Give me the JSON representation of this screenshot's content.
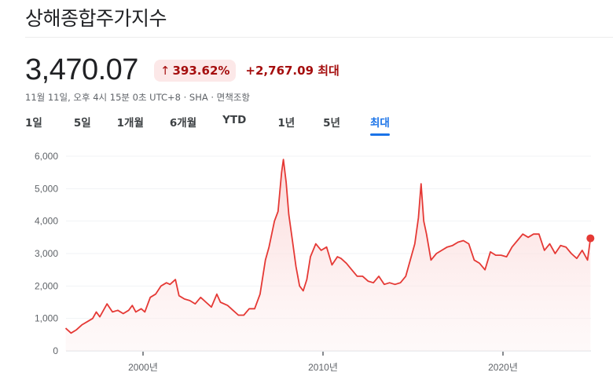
{
  "header": {
    "title": "상해종합주가지수"
  },
  "quote": {
    "price": "3,470.07",
    "change_percent": "393.62%",
    "change_arrow": "↑",
    "change_absolute": "+2,767.09 최대",
    "meta": "11월 11일, 오후 4시 15분 0초 UTC+8 · SHA · 면책조항"
  },
  "range_tabs": [
    {
      "label": "1일",
      "active": false
    },
    {
      "label": "5일",
      "active": false
    },
    {
      "label": "1개월",
      "active": false
    },
    {
      "label": "6개월",
      "active": false
    },
    {
      "label": "YTD",
      "active": false
    },
    {
      "label": "1년",
      "active": false
    },
    {
      "label": "5년",
      "active": false
    },
    {
      "label": "최대",
      "active": true
    }
  ],
  "colors": {
    "line": "#e53935",
    "fill_top": "#fbd3d3",
    "active_tab": "#1a73e8",
    "negative_badge_bg": "#fce8e8",
    "negative_text": "#a50e0e"
  },
  "chart_data": {
    "type": "area",
    "title": "상해종합주가지수",
    "xlabel": "",
    "ylabel": "",
    "ylim": [
      0,
      6000
    ],
    "xlim": [
      1995.7,
      2024.9
    ],
    "yticks": [
      "0",
      "1,000",
      "2,000",
      "3,000",
      "4,000",
      "5,000",
      "6,000"
    ],
    "ytick_values": [
      0,
      1000,
      2000,
      3000,
      4000,
      5000,
      6000
    ],
    "xticks": [
      "2000년",
      "2010년",
      "2020년"
    ],
    "xtick_values": [
      2000,
      2010,
      2020
    ],
    "grid": true,
    "legend": "none",
    "series": [
      {
        "name": "상해종합주가지수",
        "x": [
          1995.7,
          1996.0,
          1996.3,
          1996.6,
          1996.9,
          1997.2,
          1997.4,
          1997.6,
          1997.8,
          1998.0,
          1998.3,
          1998.6,
          1998.9,
          1999.2,
          1999.4,
          1999.6,
          1999.9,
          2000.1,
          2000.4,
          2000.7,
          2001.0,
          2001.3,
          2001.5,
          2001.8,
          2002.0,
          2002.3,
          2002.6,
          2002.9,
          2003.2,
          2003.5,
          2003.8,
          2004.1,
          2004.3,
          2004.7,
          2005.0,
          2005.3,
          2005.6,
          2005.9,
          2006.2,
          2006.5,
          2006.8,
          2007.0,
          2007.3,
          2007.5,
          2007.7,
          2007.8,
          2007.95,
          2008.1,
          2008.3,
          2008.5,
          2008.7,
          2008.9,
          2009.1,
          2009.3,
          2009.6,
          2009.9,
          2010.2,
          2010.5,
          2010.8,
          2011.0,
          2011.3,
          2011.6,
          2011.9,
          2012.2,
          2012.5,
          2012.8,
          2013.1,
          2013.4,
          2013.7,
          2014.0,
          2014.3,
          2014.6,
          2014.9,
          2015.1,
          2015.3,
          2015.45,
          2015.6,
          2015.75,
          2016.0,
          2016.3,
          2016.6,
          2016.9,
          2017.2,
          2017.5,
          2017.8,
          2018.1,
          2018.4,
          2018.7,
          2019.0,
          2019.3,
          2019.6,
          2019.9,
          2020.2,
          2020.5,
          2020.8,
          2021.1,
          2021.4,
          2021.7,
          2022.0,
          2022.3,
          2022.6,
          2022.9,
          2023.2,
          2023.5,
          2023.8,
          2024.1,
          2024.4,
          2024.7,
          2024.86
        ],
        "values": [
          700,
          550,
          650,
          800,
          900,
          1000,
          1200,
          1050,
          1250,
          1450,
          1200,
          1250,
          1150,
          1250,
          1400,
          1200,
          1300,
          1200,
          1650,
          1750,
          2000,
          2100,
          2050,
          2200,
          1700,
          1600,
          1550,
          1450,
          1650,
          1500,
          1350,
          1750,
          1500,
          1400,
          1250,
          1100,
          1100,
          1300,
          1300,
          1750,
          2800,
          3200,
          4000,
          4300,
          5500,
          5900,
          5200,
          4200,
          3400,
          2600,
          2000,
          1850,
          2200,
          2900,
          3300,
          3100,
          3200,
          2650,
          2900,
          2850,
          2700,
          2500,
          2300,
          2300,
          2150,
          2100,
          2300,
          2050,
          2100,
          2050,
          2100,
          2300,
          2900,
          3300,
          4100,
          5150,
          4000,
          3600,
          2800,
          3000,
          3100,
          3200,
          3250,
          3350,
          3400,
          3300,
          2800,
          2700,
          2500,
          3050,
          2950,
          2950,
          2900,
          3200,
          3400,
          3600,
          3500,
          3600,
          3600,
          3100,
          3300,
          3000,
          3250,
          3200,
          3000,
          2850,
          3100,
          2800,
          3470
        ]
      }
    ],
    "last_point": {
      "x": 2024.86,
      "value": 3470.07
    }
  }
}
